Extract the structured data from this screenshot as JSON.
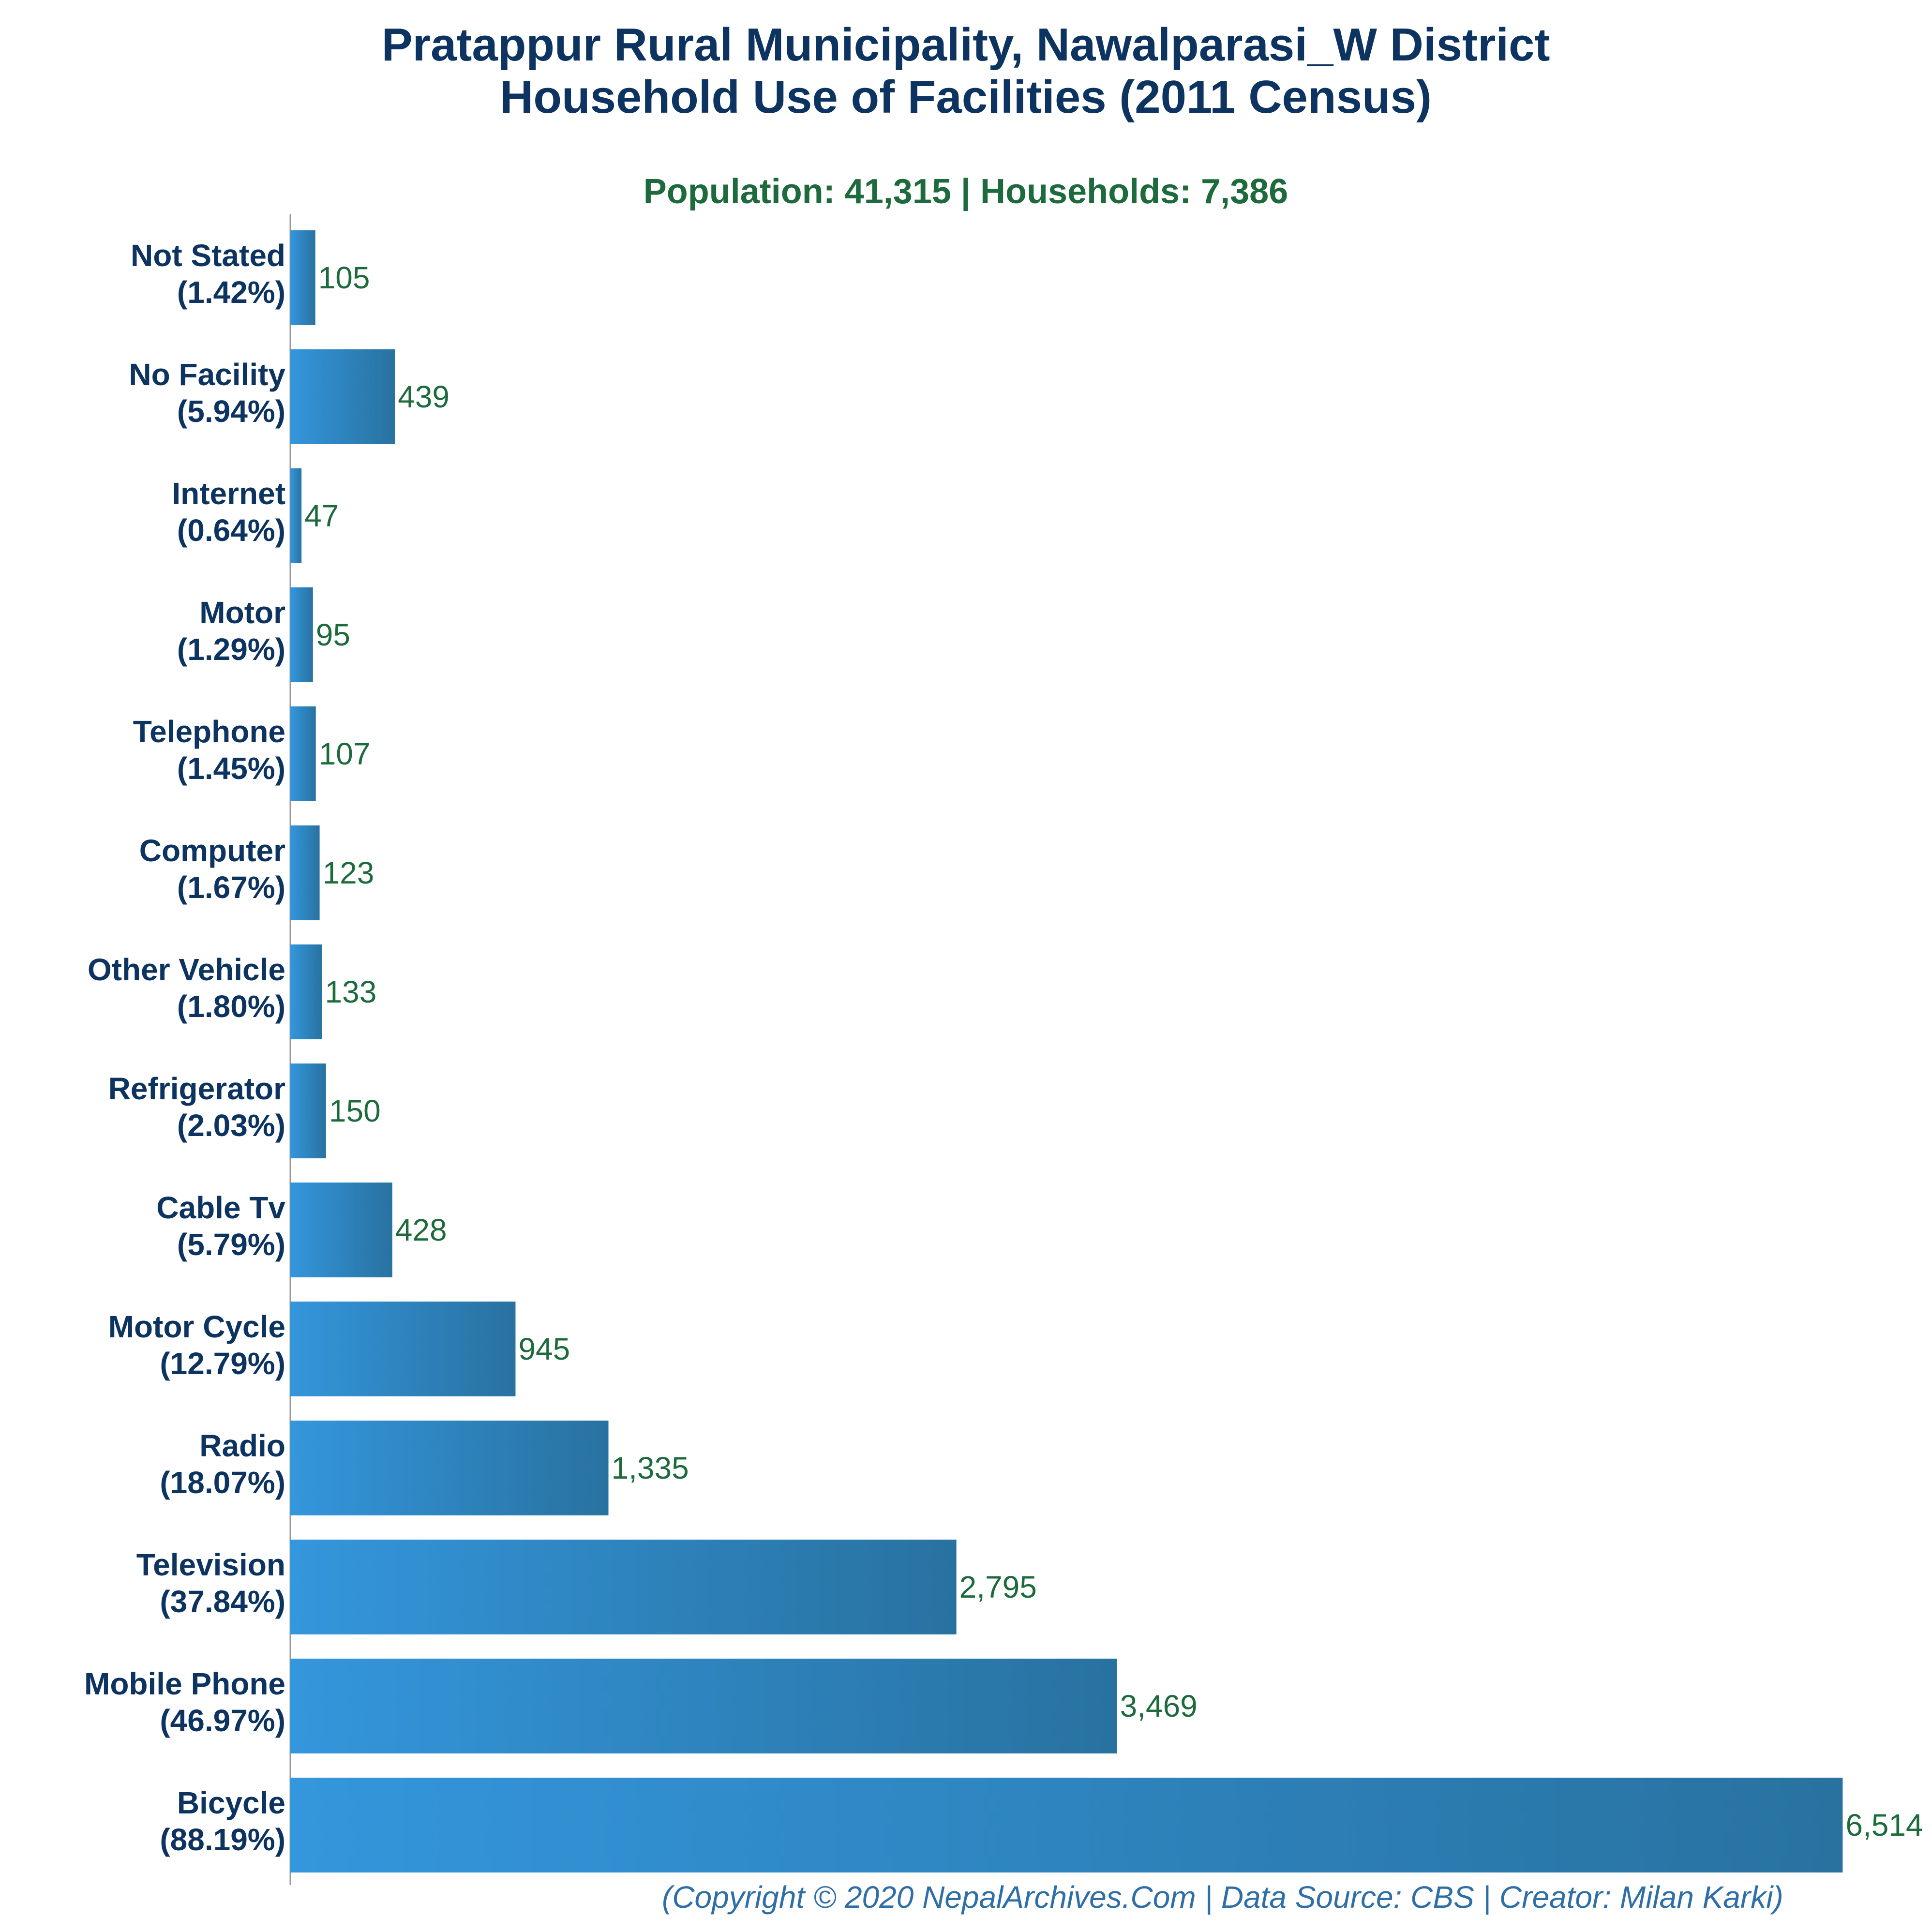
{
  "colors": {
    "title": "#0d3461",
    "subtitle": "#1d6b3c",
    "category_label": "#0d3461",
    "value_label": "#1d6b3c",
    "footer": "#2f6fa8",
    "bar_gradient_start": "#3496dc",
    "bar_gradient_end": "#2872a0",
    "axis": "#999999"
  },
  "chart_data": {
    "type": "bar",
    "orientation": "horizontal",
    "title_lines": [
      "Pratappur Rural Municipality, Nawalparasi_W District",
      "Household Use of Facilities (2011 Census)"
    ],
    "subtitle": "Population: 41,315 | Households: 7,386",
    "xlim": [
      0,
      6700
    ],
    "grid": false,
    "legend": "none",
    "categories": [
      {
        "name": "Not Stated",
        "percent": "(1.42%)",
        "value": 105,
        "value_label": "105"
      },
      {
        "name": "No Facility",
        "percent": "(5.94%)",
        "value": 439,
        "value_label": "439"
      },
      {
        "name": "Internet",
        "percent": "(0.64%)",
        "value": 47,
        "value_label": "47"
      },
      {
        "name": "Motor",
        "percent": "(1.29%)",
        "value": 95,
        "value_label": "95"
      },
      {
        "name": "Telephone",
        "percent": "(1.45%)",
        "value": 107,
        "value_label": "107"
      },
      {
        "name": "Computer",
        "percent": "(1.67%)",
        "value": 123,
        "value_label": "123"
      },
      {
        "name": "Other Vehicle",
        "percent": "(1.80%)",
        "value": 133,
        "value_label": "133"
      },
      {
        "name": "Refrigerator",
        "percent": "(2.03%)",
        "value": 150,
        "value_label": "150"
      },
      {
        "name": "Cable Tv",
        "percent": "(5.79%)",
        "value": 428,
        "value_label": "428"
      },
      {
        "name": "Motor Cycle",
        "percent": "(12.79%)",
        "value": 945,
        "value_label": "945"
      },
      {
        "name": "Radio",
        "percent": "(18.07%)",
        "value": 1335,
        "value_label": "1,335"
      },
      {
        "name": "Television",
        "percent": "(37.84%)",
        "value": 2795,
        "value_label": "2,795"
      },
      {
        "name": "Mobile Phone",
        "percent": "(46.97%)",
        "value": 3469,
        "value_label": "3,469"
      },
      {
        "name": "Bicycle",
        "percent": "(88.19%)",
        "value": 6514,
        "value_label": "6,514"
      }
    ],
    "footer": "(Copyright © 2020 NepalArchives.Com | Data Source: CBS | Creator: Milan Karki)"
  }
}
